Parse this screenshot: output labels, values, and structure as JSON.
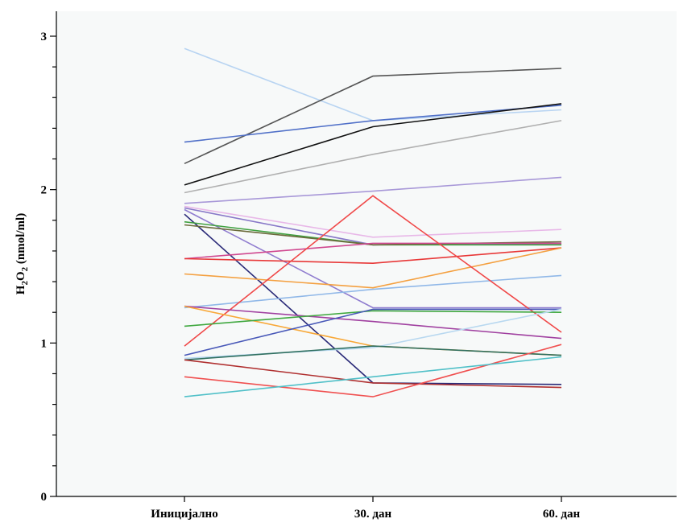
{
  "chart_data": {
    "type": "line",
    "ylabel": {
      "base": "H",
      "sub1": "2",
      "mid": "O",
      "sub2": "2",
      "suffix": " (nmol/ml)"
    },
    "categories": [
      "Иницијално",
      "30. дан",
      "60. дан"
    ],
    "ylim": [
      0,
      3
    ],
    "yticks": [
      "0",
      "1",
      "2",
      "3"
    ],
    "grid": false,
    "series": [
      {
        "color": "#b8d4f2",
        "values": [
          2.92,
          2.45,
          2.52
        ]
      },
      {
        "color": "#555555",
        "values": [
          2.17,
          2.74,
          2.79
        ]
      },
      {
        "color": "#5070c8",
        "values": [
          2.31,
          2.45,
          2.55
        ]
      },
      {
        "color": "#111111",
        "values": [
          2.03,
          2.41,
          2.56
        ]
      },
      {
        "color": "#b0b0b0",
        "values": [
          1.98,
          2.23,
          2.45
        ]
      },
      {
        "color": "#a898d8",
        "values": [
          1.91,
          1.99,
          2.08
        ]
      },
      {
        "color": "#e8b8e8",
        "values": [
          1.89,
          1.69,
          1.74
        ]
      },
      {
        "color": "#8878c8",
        "values": [
          1.88,
          1.64,
          1.65
        ]
      },
      {
        "color": "#8f7ccf",
        "values": [
          1.87,
          1.23,
          1.23
        ]
      },
      {
        "color": "#2a2a78",
        "values": [
          1.84,
          0.74,
          0.73
        ]
      },
      {
        "color": "#40a040",
        "values": [
          1.79,
          1.64,
          1.64
        ]
      },
      {
        "color": "#6a6a3a",
        "values": [
          1.77,
          1.64,
          1.66
        ]
      },
      {
        "color": "#d04890",
        "values": [
          1.55,
          1.65,
          1.65
        ]
      },
      {
        "color": "#e83838",
        "values": [
          1.55,
          1.52,
          1.62
        ]
      },
      {
        "color": "#f4a040",
        "values": [
          1.45,
          1.36,
          1.62
        ]
      },
      {
        "color": "#90b8e8",
        "values": [
          1.23,
          1.35,
          1.44
        ]
      },
      {
        "color": "#f04848",
        "values": [
          0.98,
          1.96,
          1.07
        ]
      },
      {
        "color": "#a040a0",
        "values": [
          1.24,
          1.14,
          1.03
        ]
      },
      {
        "color": "#f8a838",
        "values": [
          1.24,
          0.98,
          0.92
        ]
      },
      {
        "color": "#40a840",
        "values": [
          1.11,
          1.21,
          1.2
        ]
      },
      {
        "color": "#4858b8",
        "values": [
          0.92,
          1.22,
          1.22
        ]
      },
      {
        "color": "#b8d8f0",
        "values": [
          0.9,
          0.97,
          1.22
        ]
      },
      {
        "color": "#307060",
        "values": [
          0.89,
          0.98,
          0.92
        ]
      },
      {
        "color": "#b03030",
        "values": [
          0.89,
          0.74,
          0.71
        ]
      },
      {
        "color": "#f05050",
        "values": [
          0.78,
          0.65,
          0.99
        ]
      },
      {
        "color": "#50c0c8",
        "values": [
          0.65,
          0.78,
          0.91
        ]
      }
    ]
  }
}
